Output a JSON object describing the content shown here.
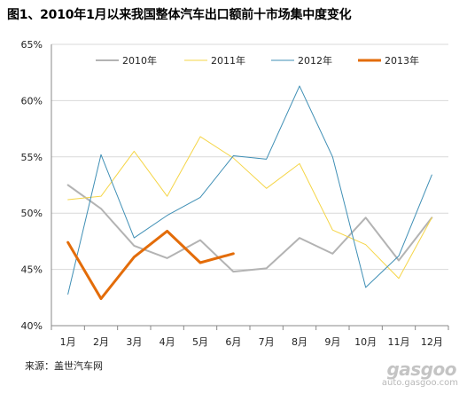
{
  "title": "图1、2010年1月以来我国整体汽车出口额前十市场集中度变化",
  "source": "来源：盖世汽车网",
  "watermark": {
    "logo": "gasgoo",
    "url": "auto.gasgoo.com"
  },
  "chart_data": {
    "type": "line",
    "categories": [
      "1月",
      "2月",
      "3月",
      "4月",
      "5月",
      "6月",
      "7月",
      "8月",
      "9月",
      "10月",
      "11月",
      "12月"
    ],
    "ylim": [
      40,
      65
    ],
    "yticks": [
      40,
      45,
      50,
      55,
      60,
      65
    ],
    "ytick_labels": [
      "40%",
      "45%",
      "50%",
      "55%",
      "60%",
      "65%"
    ],
    "grid": "horizontal",
    "legend_position": "top",
    "series": [
      {
        "name": "2010年",
        "color": "#b3b3b3",
        "width": 2,
        "values": [
          52.5,
          50.4,
          47.1,
          46.0,
          47.6,
          44.8,
          45.1,
          47.8,
          46.4,
          49.6,
          45.8,
          49.6
        ]
      },
      {
        "name": "2011年",
        "color": "#f5d547",
        "width": 1,
        "values": [
          51.2,
          51.5,
          55.5,
          51.5,
          56.8,
          54.9,
          52.2,
          54.4,
          48.5,
          47.2,
          44.2,
          49.6
        ]
      },
      {
        "name": "2012年",
        "color": "#3f8fb5",
        "width": 1,
        "values": [
          42.8,
          55.2,
          47.8,
          49.8,
          51.4,
          55.1,
          54.8,
          61.3,
          55.0,
          43.4,
          46.2,
          53.4
        ]
      },
      {
        "name": "2013年",
        "color": "#e36c09",
        "width": 3,
        "values": [
          47.4,
          42.4,
          46.1,
          48.4,
          45.6,
          46.4,
          null,
          null,
          null,
          null,
          null,
          null
        ]
      }
    ]
  }
}
